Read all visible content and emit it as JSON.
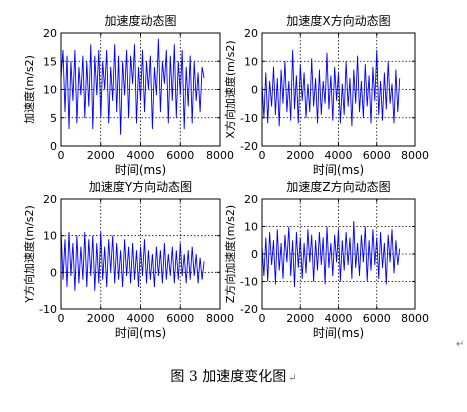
{
  "chart_data": [
    {
      "type": "line",
      "title": "加速度动态图",
      "xlabel": "时间(ms)",
      "ylabel": "加速度(m/s2)",
      "xlim": [
        0,
        8000
      ],
      "ylim": [
        0,
        20
      ],
      "xticks": [
        0,
        2000,
        4000,
        6000,
        8000
      ],
      "yticks": [
        0,
        5,
        10,
        15,
        20
      ],
      "grid": true,
      "series": [
        {
          "color": "#0000ff",
          "x": [
            0,
            100,
            200,
            300,
            400,
            500,
            600,
            700,
            800,
            900,
            1000,
            1100,
            1200,
            1300,
            1400,
            1500,
            1600,
            1700,
            1800,
            1900,
            2000,
            2100,
            2200,
            2300,
            2400,
            2500,
            2600,
            2700,
            2800,
            2900,
            3000,
            3100,
            3200,
            3300,
            3400,
            3500,
            3600,
            3700,
            3800,
            3900,
            4000,
            4100,
            4200,
            4300,
            4400,
            4500,
            4600,
            4700,
            4800,
            4900,
            5000,
            5100,
            5200,
            5300,
            5400,
            5500,
            5600,
            5700,
            5800,
            5900,
            6000,
            6100,
            6200,
            6300,
            6400,
            6500,
            6600,
            6700,
            6800,
            6900,
            7000,
            7100,
            7200
          ],
          "y": [
            12,
            17,
            6,
            16,
            3,
            15,
            8,
            17,
            4,
            14,
            9,
            16,
            5,
            15,
            7,
            18,
            3,
            16,
            9,
            17,
            5,
            15,
            10,
            17,
            4,
            14,
            8,
            18,
            6,
            16,
            2,
            15,
            9,
            17,
            5,
            16,
            11,
            18,
            4,
            14,
            8,
            17,
            6,
            15,
            10,
            16,
            3,
            14,
            9,
            19,
            6,
            15,
            11,
            17,
            4,
            16,
            8,
            18,
            5,
            15,
            9,
            17,
            3,
            14,
            7,
            16,
            4,
            15,
            8,
            13,
            6,
            14,
            12
          ]
        }
      ]
    },
    {
      "type": "line",
      "title": "加速度X方向动态图",
      "xlabel": "时间(ms)",
      "ylabel": "X方向加速度(m/s2)",
      "xlim": [
        0,
        8000
      ],
      "ylim": [
        -20,
        20
      ],
      "xticks": [
        0,
        2000,
        4000,
        6000,
        8000
      ],
      "yticks": [
        -20,
        -10,
        0,
        10,
        20
      ],
      "grid": true,
      "series": [
        {
          "color": "#0000ff",
          "x": [
            0,
            100,
            200,
            300,
            400,
            500,
            600,
            700,
            800,
            900,
            1000,
            1100,
            1200,
            1300,
            1400,
            1500,
            1600,
            1700,
            1800,
            1900,
            2000,
            2100,
            2200,
            2300,
            2400,
            2500,
            2600,
            2700,
            2800,
            2900,
            3000,
            3100,
            3200,
            3300,
            3400,
            3500,
            3600,
            3700,
            3800,
            3900,
            4000,
            4100,
            4200,
            4300,
            4400,
            4500,
            4600,
            4700,
            4800,
            4900,
            5000,
            5100,
            5200,
            5300,
            5400,
            5500,
            5600,
            5700,
            5800,
            5900,
            6000,
            6100,
            6200,
            6300,
            6400,
            6500,
            6600,
            6700,
            6800,
            6900,
            7000,
            7100,
            7200
          ],
          "y": [
            2,
            -10,
            6,
            -12,
            3,
            -6,
            8,
            -9,
            4,
            -13,
            7,
            -5,
            10,
            -8,
            3,
            -11,
            14,
            -7,
            5,
            -12,
            9,
            -4,
            6,
            -10,
            2,
            -8,
            11,
            -6,
            4,
            -12,
            7,
            -9,
            3,
            -5,
            13,
            -7,
            5,
            -11,
            8,
            -4,
            6,
            -12,
            2,
            -9,
            10,
            -6,
            4,
            -13,
            7,
            -5,
            12,
            -8,
            3,
            -10,
            9,
            -6,
            5,
            -12,
            8,
            -4,
            14,
            -9,
            3,
            -11,
            6,
            -7,
            10,
            -5,
            2,
            -12,
            7,
            -8,
            4
          ]
        }
      ]
    },
    {
      "type": "line",
      "title": "加速度Y方向动态图",
      "xlabel": "时间(ms)",
      "ylabel": "Y方向加速度(m/s2)",
      "xlim": [
        0,
        8000
      ],
      "ylim": [
        -10,
        20
      ],
      "xticks": [
        0,
        2000,
        4000,
        6000,
        8000
      ],
      "yticks": [
        -10,
        0,
        10,
        20
      ],
      "grid": true,
      "series": [
        {
          "color": "#0000ff",
          "x": [
            0,
            100,
            200,
            300,
            400,
            500,
            600,
            700,
            800,
            900,
            1000,
            1100,
            1200,
            1300,
            1400,
            1500,
            1600,
            1700,
            1800,
            1900,
            2000,
            2100,
            2200,
            2300,
            2400,
            2500,
            2600,
            2700,
            2800,
            2900,
            3000,
            3100,
            3200,
            3300,
            3400,
            3500,
            3600,
            3700,
            3800,
            3900,
            4000,
            4100,
            4200,
            4300,
            4400,
            4500,
            4600,
            4700,
            4800,
            4900,
            5000,
            5100,
            5200,
            5300,
            5400,
            5500,
            5600,
            5700,
            5800,
            5900,
            6000,
            6100,
            6200,
            6300,
            6400,
            6500,
            6600,
            6700,
            6800,
            6900,
            7000,
            7100,
            7200
          ],
          "y": [
            12,
            -2,
            9,
            -4,
            11,
            -1,
            8,
            -5,
            10,
            -3,
            7,
            -2,
            11,
            -4,
            9,
            -1,
            10,
            -5,
            8,
            -3,
            11,
            -2,
            7,
            -4,
            9,
            0,
            10,
            -3,
            8,
            -2,
            6,
            -4,
            9,
            -1,
            7,
            -3,
            8,
            -2,
            6,
            -4,
            7,
            -1,
            9,
            -3,
            6,
            -2,
            5,
            -4,
            7,
            -1,
            6,
            -3,
            8,
            -2,
            5,
            -1,
            7,
            -3,
            6,
            -2,
            8,
            -1,
            5,
            -3,
            6,
            -2,
            7,
            -1,
            5,
            -3,
            4,
            -2,
            3
          ]
        }
      ]
    },
    {
      "type": "line",
      "title": "加速度Z方向动态图",
      "xlabel": "时间(ms)",
      "ylabel": "Z方向加速度(m/s2)",
      "xlim": [
        0,
        8000
      ],
      "ylim": [
        -20,
        20
      ],
      "xticks": [
        0,
        2000,
        4000,
        6000,
        8000
      ],
      "yticks": [
        -20,
        -10,
        0,
        10,
        20
      ],
      "grid": true,
      "series": [
        {
          "color": "#0000ff",
          "x": [
            0,
            100,
            200,
            300,
            400,
            500,
            600,
            700,
            800,
            900,
            1000,
            1100,
            1200,
            1300,
            1400,
            1500,
            1600,
            1700,
            1800,
            1900,
            2000,
            2100,
            2200,
            2300,
            2400,
            2500,
            2600,
            2700,
            2800,
            2900,
            3000,
            3100,
            3200,
            3300,
            3400,
            3500,
            3600,
            3700,
            3800,
            3900,
            4000,
            4100,
            4200,
            4300,
            4400,
            4500,
            4600,
            4700,
            4800,
            4900,
            5000,
            5100,
            5200,
            5300,
            5400,
            5500,
            5600,
            5700,
            5800,
            5900,
            6000,
            6100,
            6200,
            6300,
            6400,
            6500,
            6600,
            6700,
            6800,
            6900,
            7000,
            7100,
            7200
          ],
          "y": [
            3,
            -8,
            6,
            -10,
            8,
            -4,
            5,
            -11,
            9,
            -6,
            4,
            -9,
            7,
            -3,
            10,
            -8,
            5,
            -12,
            8,
            -5,
            6,
            -9,
            4,
            -7,
            9,
            -3,
            7,
            -10,
            5,
            -6,
            8,
            -4,
            6,
            -11,
            10,
            -5,
            4,
            -8,
            7,
            -3,
            9,
            -10,
            5,
            -6,
            8,
            -4,
            6,
            -9,
            12,
            -5,
            4,
            -8,
            7,
            -3,
            10,
            -10,
            5,
            -6,
            9,
            -4,
            6,
            -9,
            8,
            -5,
            4,
            -11,
            7,
            -3,
            9,
            -7,
            5,
            -4,
            2
          ]
        }
      ]
    }
  ],
  "caption": {
    "number": "图 3",
    "title": "加速度变化图",
    "return_mark": "↵"
  },
  "page_mark": "↵"
}
